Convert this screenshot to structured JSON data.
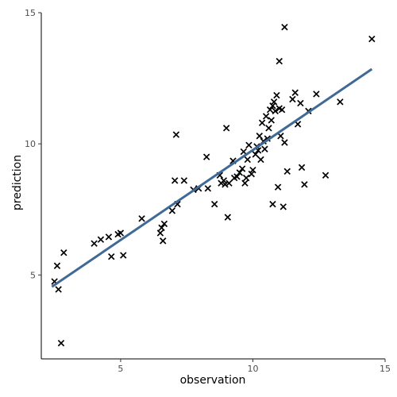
{
  "chart_data": {
    "type": "scatter",
    "title": "",
    "xlabel": "observation",
    "ylabel": "prediction",
    "xlim": [
      2.0,
      15.0
    ],
    "ylim": [
      1.8,
      15.0
    ],
    "xticks": [
      5,
      10,
      15
    ],
    "yticks": [
      5,
      10,
      15
    ],
    "grid": false,
    "marker": "x",
    "colors": {
      "points": "#000000",
      "fit_line": "#3f6a96",
      "axis": "#000000",
      "tick_label": "#4d4d4d"
    },
    "points": {
      "x": [
        2.5,
        2.6,
        2.65,
        2.75,
        2.85,
        4.0,
        4.25,
        4.55,
        4.65,
        4.9,
        5.0,
        5.1,
        5.8,
        6.5,
        6.55,
        6.6,
        6.65,
        6.95,
        7.05,
        7.1,
        7.15,
        7.4,
        7.75,
        7.95,
        8.25,
        8.3,
        8.55,
        8.75,
        8.8,
        8.9,
        8.95,
        9.0,
        9.05,
        9.1,
        9.25,
        9.4,
        9.5,
        9.6,
        9.65,
        9.7,
        9.75,
        9.8,
        9.85,
        9.95,
        10.1,
        10.15,
        10.2,
        10.25,
        10.3,
        10.35,
        10.4,
        10.45,
        10.5,
        10.55,
        10.6,
        10.65,
        10.7,
        10.75,
        10.8,
        10.85,
        10.9,
        10.95,
        11.0,
        11.05,
        11.1,
        11.15,
        11.2,
        11.3,
        11.5,
        11.6,
        11.7,
        11.8,
        11.85,
        11.95,
        12.1,
        12.4,
        12.75,
        13.3,
        14.5,
        10.0,
        9.3,
        10.75,
        11.0,
        11.2
      ],
      "y": [
        4.75,
        5.35,
        4.45,
        2.4,
        5.85,
        6.2,
        6.35,
        6.45,
        5.7,
        6.55,
        6.6,
        5.75,
        7.15,
        6.6,
        6.8,
        6.3,
        6.95,
        7.45,
        8.6,
        10.35,
        7.7,
        8.6,
        8.25,
        8.3,
        9.5,
        8.3,
        7.7,
        8.8,
        8.5,
        8.6,
        8.45,
        10.6,
        7.2,
        8.5,
        9.35,
        8.75,
        8.9,
        9.05,
        9.7,
        8.5,
        8.7,
        9.4,
        9.95,
        8.85,
        9.6,
        9.9,
        9.75,
        10.3,
        9.4,
        10.8,
        10.1,
        9.8,
        11.05,
        10.2,
        10.6,
        11.3,
        10.9,
        11.45,
        11.6,
        11.25,
        11.85,
        8.35,
        11.35,
        10.3,
        11.3,
        7.6,
        10.05,
        8.95,
        11.7,
        11.95,
        10.75,
        11.55,
        9.1,
        8.45,
        11.25,
        11.9,
        8.8,
        11.6,
        14.0,
        9.0,
        8.7,
        7.7,
        13.15,
        14.45
      ]
    },
    "fit_line": {
      "x": [
        2.4,
        14.5
      ],
      "y": [
        4.55,
        12.85
      ]
    }
  }
}
